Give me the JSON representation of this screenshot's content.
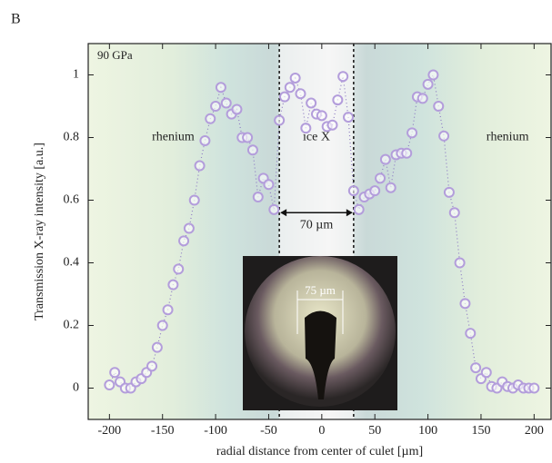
{
  "chart_data": {
    "type": "scatter",
    "panel_label": "B",
    "annotation_pressure": "90 GPa",
    "annotation_left": "rhenium",
    "annotation_center": "ice X",
    "annotation_right": "rhenium",
    "annotation_width": "70 µm",
    "inset_label": "75 µm",
    "xlabel": "radial distance from center of culet [µm]",
    "ylabel": "Transmission X-ray intensity [a.u.]",
    "xlim": [
      -220,
      216
    ],
    "ylim": [
      -0.1,
      1.1
    ],
    "xticks": [
      -200,
      -150,
      -100,
      -50,
      0,
      50,
      100,
      150,
      200
    ],
    "yticks": [
      0,
      0.2,
      0.4,
      0.6,
      0.8,
      1
    ],
    "ice_region": [
      -40,
      30
    ],
    "series": [
      {
        "color": "#b39ddb",
        "x": [
          -200,
          -195,
          -190,
          -185,
          -180,
          -175,
          -170,
          -165,
          -160,
          -155,
          -150,
          -145,
          -140,
          -135,
          -130,
          -125,
          -120,
          -115,
          -110,
          -105,
          -100,
          -95,
          -90,
          -85,
          -80,
          -75,
          -70,
          -65,
          -60,
          -55,
          -50,
          -45,
          -40,
          -35,
          -30,
          -25,
          -20,
          -15,
          -10,
          -5,
          0,
          5,
          10,
          15,
          20,
          25,
          30,
          35,
          40,
          45,
          50,
          55,
          60,
          65,
          70,
          75,
          80,
          85,
          90,
          95,
          100,
          105,
          110,
          115,
          120,
          125,
          130,
          135,
          140,
          145,
          150,
          155,
          160,
          165,
          170,
          175,
          180,
          185,
          190,
          195,
          200
        ],
        "values": [
          0.01,
          0.05,
          0.02,
          0,
          0,
          0.02,
          0.03,
          0.05,
          0.07,
          0.13,
          0.2,
          0.25,
          0.33,
          0.38,
          0.47,
          0.51,
          0.6,
          0.71,
          0.79,
          0.86,
          0.9,
          0.96,
          0.91,
          0.875,
          0.89,
          0.8,
          0.8,
          0.76,
          0.61,
          0.67,
          0.65,
          0.57,
          0.855,
          0.93,
          0.96,
          0.99,
          0.94,
          0.83,
          0.91,
          0.875,
          0.87,
          0.835,
          0.84,
          0.92,
          0.995,
          0.865,
          0.63,
          0.57,
          0.61,
          0.62,
          0.63,
          0.67,
          0.73,
          0.64,
          0.745,
          0.75,
          0.75,
          0.815,
          0.93,
          0.925,
          0.97,
          1.0,
          0.9,
          0.805,
          0.625,
          0.56,
          0.4,
          0.27,
          0.175,
          0.065,
          0.03,
          0.05,
          0.005,
          0,
          0.02,
          0.005,
          0,
          0.01,
          0,
          0,
          0
        ]
      }
    ]
  }
}
